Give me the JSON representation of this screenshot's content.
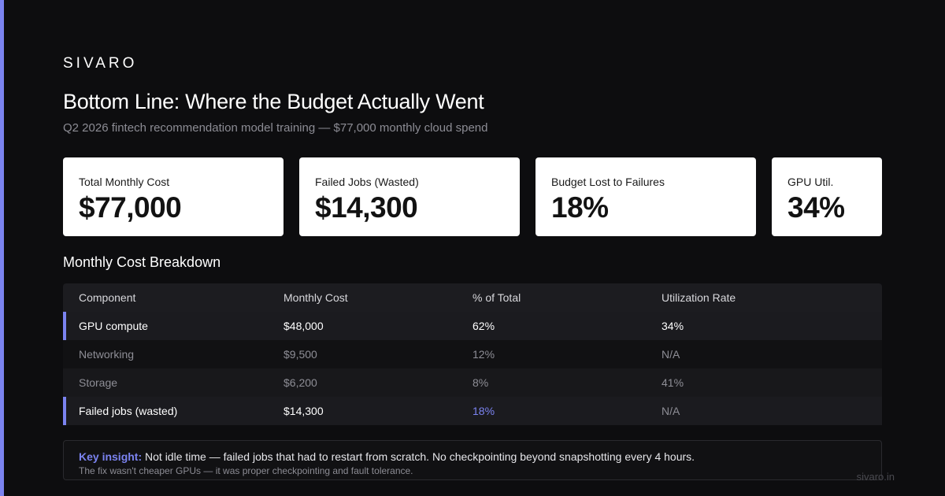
{
  "brand": "SIVARO",
  "title": "Bottom Line: Where the Budget Actually Went",
  "subtitle": "Q2 2026 fintech recommendation model training — $77,000 monthly cloud spend",
  "cards": [
    {
      "label": "Total Monthly Cost",
      "value": "$77,000"
    },
    {
      "label": "Failed Jobs (Wasted)",
      "value": "$14,300"
    },
    {
      "label": "Budget Lost to Failures",
      "value": "18%"
    },
    {
      "label": "GPU Util.",
      "value": "34%"
    }
  ],
  "section_title": "Monthly Cost Breakdown",
  "table": {
    "headers": [
      "Component",
      "Monthly Cost",
      "% of Total",
      "Utilization Rate"
    ],
    "rows": [
      [
        "GPU compute",
        "$48,000",
        "62%",
        "34%"
      ],
      [
        "Networking",
        "$9,500",
        "12%",
        "N/A"
      ],
      [
        "Storage",
        "$6,200",
        "8%",
        "41%"
      ],
      [
        "Failed jobs (wasted)",
        "$14,300",
        "18%",
        "N/A"
      ]
    ]
  },
  "insight": {
    "label": "Key insight:",
    "text": "Not idle time — failed jobs that had to restart from scratch. No checkpointing beyond snapshotting every 4 hours.",
    "sub": "The fix wasn't cheaper GPUs — it was proper checkpointing and fault tolerance."
  },
  "footer": "sivaro.in",
  "colors": {
    "accent": "#7b83f0",
    "background": "#0d0d0f",
    "card": "#ffffff"
  }
}
